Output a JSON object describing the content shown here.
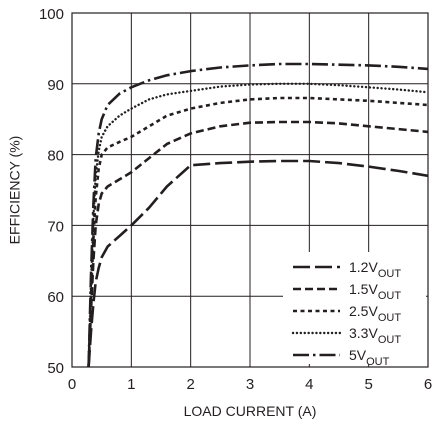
{
  "chart_data": {
    "type": "line",
    "xlabel": "LOAD CURRENT (A)",
    "ylabel": "EFFICIENCY (%)",
    "xlim": [
      0,
      6
    ],
    "ylim": [
      50,
      100
    ],
    "x_ticks": [
      0,
      1,
      2,
      3,
      4,
      5,
      6
    ],
    "y_ticks": [
      50,
      60,
      70,
      80,
      90,
      100
    ],
    "grid": true,
    "legend_position": "bottom-right",
    "series": [
      {
        "name": "1.2V",
        "name_subscript": "OUT",
        "dash": "long-dash",
        "x": [
          0.28,
          0.32,
          0.36,
          0.4,
          0.45,
          0.5,
          0.6,
          0.8,
          1.0,
          1.3,
          1.6,
          2.0,
          2.5,
          3.0,
          3.5,
          4.0,
          4.5,
          5.0,
          5.5,
          6.0
        ],
        "y": [
          50,
          55,
          59,
          62,
          64,
          65.5,
          67,
          68.5,
          70,
          72.5,
          75.5,
          78.5,
          78.8,
          79,
          79.1,
          79.1,
          78.8,
          78.3,
          77.7,
          77
        ]
      },
      {
        "name": "1.5V",
        "name_subscript": "OUT",
        "dash": "dash",
        "x": [
          0.28,
          0.32,
          0.36,
          0.4,
          0.45,
          0.5,
          0.6,
          0.8,
          1.0,
          1.3,
          1.6,
          2.0,
          2.5,
          3.0,
          3.5,
          4.0,
          4.5,
          5.0,
          5.5,
          6.0
        ],
        "y": [
          50,
          58,
          65,
          70,
          73,
          74.5,
          75.5,
          76.5,
          77.5,
          79.5,
          81.5,
          83,
          84,
          84.5,
          84.6,
          84.6,
          84.4,
          84,
          83.6,
          83.2
        ]
      },
      {
        "name": "2.5V",
        "name_subscript": "OUT",
        "dash": "short-dash",
        "x": [
          0.28,
          0.32,
          0.36,
          0.4,
          0.45,
          0.5,
          0.6,
          0.8,
          1.0,
          1.3,
          1.6,
          2.0,
          2.5,
          3.0,
          3.5,
          4.0,
          4.5,
          5.0,
          5.5,
          6.0
        ],
        "y": [
          50,
          60,
          68,
          74,
          78,
          80,
          81,
          81.8,
          82.5,
          84,
          85.5,
          86.5,
          87.3,
          87.8,
          88,
          88,
          87.8,
          87.6,
          87.3,
          87
        ]
      },
      {
        "name": "3.3V",
        "name_subscript": "OUT",
        "dash": "dotted",
        "x": [
          0.28,
          0.32,
          0.36,
          0.4,
          0.45,
          0.5,
          0.6,
          0.8,
          1.0,
          1.3,
          1.6,
          2.0,
          2.5,
          3.0,
          3.5,
          4.0,
          4.5,
          5.0,
          5.5,
          6.0
        ],
        "y": [
          50,
          62,
          71,
          77,
          80.5,
          82.5,
          84,
          85.5,
          86.5,
          87.8,
          88.5,
          89,
          89.6,
          89.9,
          90,
          90,
          89.8,
          89.5,
          89.2,
          88.8
        ]
      },
      {
        "name": "5V",
        "name_subscript": "OUT",
        "dash": "dash-dot",
        "x": [
          0.28,
          0.32,
          0.36,
          0.4,
          0.45,
          0.5,
          0.6,
          0.8,
          1.0,
          1.3,
          1.6,
          2.0,
          2.5,
          3.0,
          3.5,
          4.0,
          4.5,
          5.0,
          5.5,
          6.0
        ],
        "y": [
          50,
          63,
          73,
          79.5,
          83,
          85,
          87,
          88.6,
          89.5,
          90.5,
          91.2,
          91.8,
          92.3,
          92.6,
          92.8,
          92.8,
          92.7,
          92.6,
          92.4,
          92.1
        ]
      }
    ]
  }
}
